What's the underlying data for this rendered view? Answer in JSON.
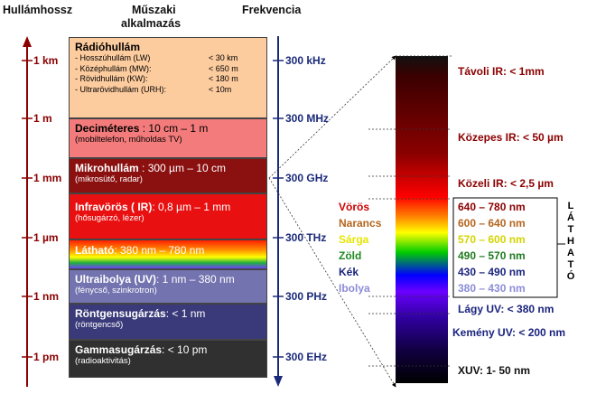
{
  "headers": {
    "wavelength": "Hullámhossz",
    "technical_line1": "Műszaki",
    "technical_line2": "alkalmazás",
    "frequency": "Frekvencia"
  },
  "wavelength_ticks": [
    "1 km",
    "1 m",
    "1 mm",
    "1 µm",
    "1 nm",
    "1 pm"
  ],
  "frequency_ticks": [
    "300 kHz",
    "300 MHz",
    "300 GHz",
    "300 THz",
    "300 PHz",
    "300 EHz"
  ],
  "radio": {
    "name": "Rádióhullám",
    "lines": [
      {
        "label": "- Hosszúhullám (LW)",
        "value": "< 30 km"
      },
      {
        "label": "- Középhullám (MW):",
        "value": "< 650 m"
      },
      {
        "label": "- Rövidhullám (KW):",
        "value": "< 180 m"
      },
      {
        "label": "- Ultrarövidhullám (URH):",
        "value": "< 10m"
      }
    ]
  },
  "bands": {
    "decimeter": {
      "name": "Deciméteres",
      "range": " : 10 cm – 1 m",
      "sub": "(mobiltelefon, műholdas TV)"
    },
    "microwave": {
      "name": "Mikrohullám",
      "range": " : 300 µm – 10 cm",
      "sub": "(mikrosütő, radar)"
    },
    "infrared": {
      "name": "Infravörös ( IR)",
      "range": ": 0,8  µm – 1 mm",
      "sub": "(hősugárzó, lézer)"
    },
    "visible": {
      "name": "Látható",
      "range": ": 380 nm – 780 nm"
    },
    "uv": {
      "name": "Ultraibolya (UV)",
      "range": ": 1 nm – 380 nm",
      "sub": "(fénycső, szinkrotron)"
    },
    "xray": {
      "name": "Röntgensugárzás",
      "range": ": < 1 nm",
      "sub": "(röntgencső)"
    },
    "gamma": {
      "name": "Gammasugárzás",
      "range": ": < 10 pm",
      "sub": "(radioaktivitás)"
    }
  },
  "spectrum_labels": {
    "far_ir": "Távoli IR: < 1mm",
    "mid_ir": "Közepes IR: < 50 µm",
    "near_ir": "Közeli IR: < 2,5 µm",
    "soft_uv": "Lágy UV: < 380 nm",
    "hard_uv": "Kemény UV: < 200 nm",
    "xuv": "XUV: 1- 50 nm"
  },
  "visible_colors": [
    {
      "name": "Vörös",
      "nm": "640 – 780 nm",
      "color": "#cc0000"
    },
    {
      "name": "Narancs",
      "nm": "600 – 640 nm",
      "color": "#b5651d"
    },
    {
      "name": "Sárga",
      "nm": "570 – 600 nm",
      "color": "#e6e600"
    },
    {
      "name": "Zöld",
      "nm": "490 – 570 nm",
      "color": "#1f8a1f"
    },
    {
      "name": "Kék",
      "nm": "430 – 490 nm",
      "color": "#1a237e"
    },
    {
      "name": "Ibolya",
      "nm": "380 – 430 nm",
      "color": "#8c8cd9"
    }
  ],
  "lathato_letters": [
    "L",
    "Á",
    "T",
    "H",
    "A",
    "T",
    "Ó"
  ]
}
